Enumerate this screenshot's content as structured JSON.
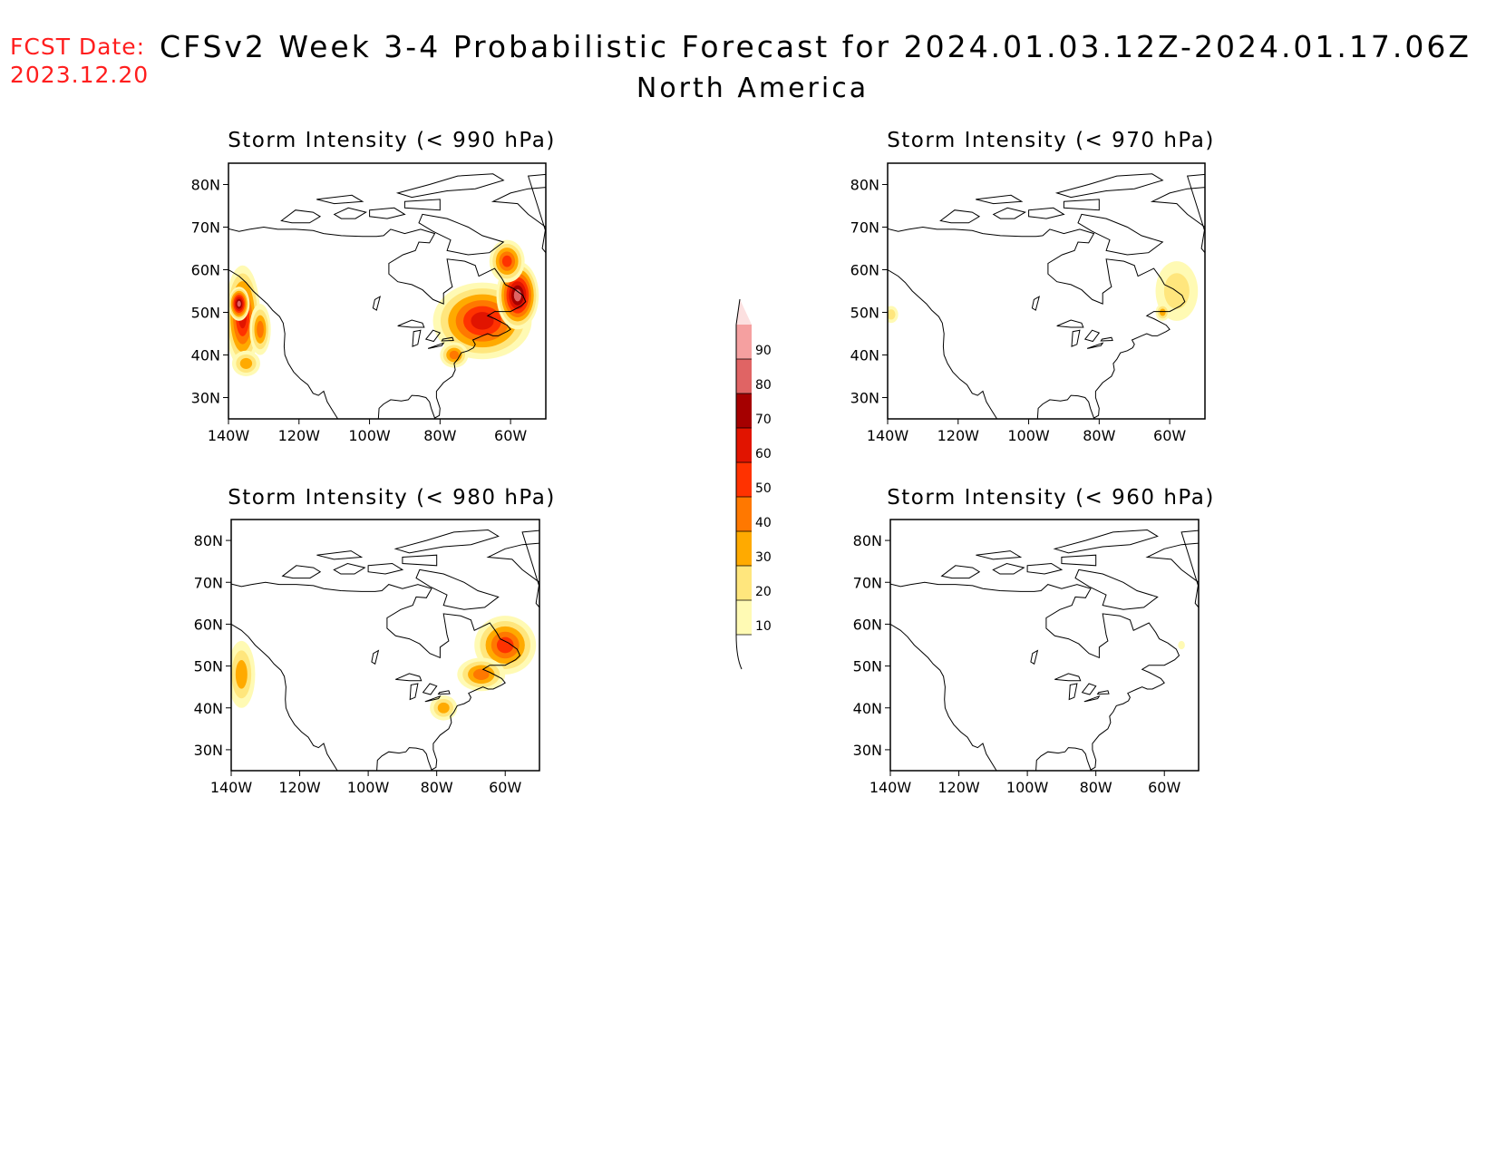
{
  "header": {
    "fcst_line1": "FCST Date:",
    "fcst_line2": "2023.12.20",
    "fcst_color": "#ff1e1e",
    "title": "CFSv2 Week 3-4 Probabilistic Forecast for 2024.01.03.12Z-2024.01.17.06Z",
    "subtitle": "North America"
  },
  "axes": {
    "lon_ticks": [
      "140W",
      "120W",
      "100W",
      "80W",
      "60W"
    ],
    "lat_ticks": [
      "80N",
      "70N",
      "60N",
      "50N",
      "40N",
      "30N"
    ],
    "lon_range": [
      -140,
      -50
    ],
    "lat_range": [
      25,
      85
    ]
  },
  "panels": [
    {
      "title": "Storm Intensity (< 990 hPa)",
      "blobs": [
        {
          "lon": -136,
          "lat": 49,
          "rx": 5,
          "ry": 12,
          "level": 60
        },
        {
          "lon": -137,
          "lat": 52,
          "rx": 3,
          "ry": 4,
          "level": 80
        },
        {
          "lon": -131,
          "lat": 46,
          "rx": 3,
          "ry": 6,
          "level": 40
        },
        {
          "lon": -135,
          "lat": 38,
          "rx": 4,
          "ry": 3,
          "level": 30
        },
        {
          "lon": -68,
          "lat": 48,
          "rx": 14,
          "ry": 9,
          "level": 60
        },
        {
          "lon": -58,
          "lat": 54,
          "rx": 6,
          "ry": 8,
          "level": 80
        },
        {
          "lon": -61,
          "lat": 62,
          "rx": 5,
          "ry": 5,
          "level": 50
        },
        {
          "lon": -76,
          "lat": 40,
          "rx": 4,
          "ry": 3,
          "level": 40
        }
      ]
    },
    {
      "title": "Storm Intensity (< 970 hPa)",
      "blobs": [
        {
          "lon": -139,
          "lat": 49.5,
          "rx": 2,
          "ry": 2,
          "level": 20
        },
        {
          "lon": -58,
          "lat": 55,
          "rx": 6,
          "ry": 7,
          "level": 20
        },
        {
          "lon": -62,
          "lat": 50,
          "rx": 2,
          "ry": 2,
          "level": 30
        }
      ]
    },
    {
      "title": "Storm Intensity (< 980 hPa)",
      "blobs": [
        {
          "lon": -137,
          "lat": 48,
          "rx": 4,
          "ry": 8,
          "level": 30
        },
        {
          "lon": -60,
          "lat": 55,
          "rx": 9,
          "ry": 7,
          "level": 50
        },
        {
          "lon": -67,
          "lat": 48,
          "rx": 7,
          "ry": 4,
          "level": 40
        },
        {
          "lon": -78,
          "lat": 40,
          "rx": 4,
          "ry": 3,
          "level": 30
        }
      ]
    },
    {
      "title": "Storm Intensity (< 960 hPa)",
      "blobs": [
        {
          "lon": -55,
          "lat": 55,
          "rx": 1,
          "ry": 1,
          "level": 10
        }
      ]
    }
  ],
  "colorbar": {
    "levels": [
      "10",
      "20",
      "30",
      "40",
      "50",
      "60",
      "70",
      "80",
      "90"
    ],
    "colors": [
      "#fffab4",
      "#ffe67d",
      "#ffaa00",
      "#ff7800",
      "#ff3200",
      "#e11400",
      "#a50000",
      "#e06464",
      "#f5a0a0",
      "#fce0e0"
    ]
  }
}
